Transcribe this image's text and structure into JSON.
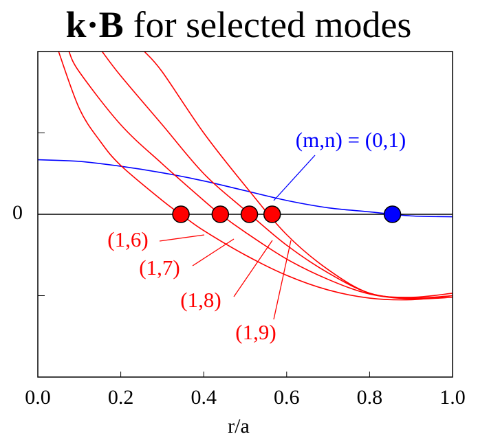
{
  "chart_data": {
    "type": "line",
    "title_symbol": "k·B",
    "title": "for selected modes",
    "xlabel": "r/a",
    "xlim": [
      0,
      1
    ],
    "ylim": [
      -2,
      2
    ],
    "xticks": [
      {
        "value": 0,
        "label": "0.0"
      },
      0.2,
      0.4,
      0.6,
      0.8,
      {
        "value": 1,
        "label": "1.0"
      }
    ],
    "yticks": [
      0
    ],
    "y_minor_ticks": [
      -2,
      -1,
      1,
      2
    ],
    "zero_line": true,
    "series": [
      {
        "name": "(m,n) = (0,1)",
        "color": "#0000ff",
        "x": [
          0,
          0.1,
          0.2,
          0.3,
          0.4,
          0.5,
          0.6,
          0.7,
          0.8,
          0.9,
          1.0
        ],
        "values": [
          0.67,
          0.65,
          0.59,
          0.51,
          0.41,
          0.29,
          0.17,
          0.08,
          0.03,
          -0.02,
          -0.03
        ]
      },
      {
        "name": "(1,6)",
        "color": "#ff0000",
        "x": [
          0.05,
          0.1,
          0.15,
          0.2,
          0.3,
          0.35,
          0.4,
          0.5,
          0.6,
          0.7,
          0.8,
          0.9,
          1.0
        ],
        "values": [
          2.0,
          1.3,
          0.9,
          0.6,
          0.17,
          -0.02,
          -0.2,
          -0.5,
          -0.75,
          -0.93,
          -1.03,
          -1.05,
          -1.0
        ]
      },
      {
        "name": "(1,7)",
        "color": "#ff0000",
        "x": [
          0.075,
          0.1,
          0.2,
          0.3,
          0.4,
          0.44,
          0.5,
          0.6,
          0.7,
          0.8,
          0.9,
          1.0
        ],
        "values": [
          2.0,
          1.75,
          1.1,
          0.62,
          0.17,
          0,
          -0.22,
          -0.55,
          -0.8,
          -0.98,
          -1.04,
          -1.02
        ]
      },
      {
        "name": "(1,8)",
        "color": "#ff0000",
        "x": [
          0.155,
          0.2,
          0.3,
          0.4,
          0.5,
          0.6,
          0.7,
          0.8,
          0.9,
          1.0
        ],
        "values": [
          2.0,
          1.7,
          1.1,
          0.5,
          0.05,
          -0.38,
          -0.72,
          -0.97,
          -1.03,
          -1.0
        ]
      },
      {
        "name": "(1,9)",
        "color": "#ff0000",
        "x": [
          0.257,
          0.3,
          0.4,
          0.5,
          0.6,
          0.7,
          0.8,
          0.9,
          1.0
        ],
        "values": [
          2.0,
          1.75,
          1.0,
          0.35,
          -0.25,
          -0.68,
          -0.97,
          -1.02,
          -0.97
        ]
      }
    ],
    "markers": [
      {
        "color": "#ff0000",
        "x": [
          0.345,
          0.44,
          0.51,
          0.565
        ],
        "values": [
          0,
          0,
          0,
          0
        ]
      },
      {
        "color": "#0000ff",
        "x": [
          0.855
        ],
        "values": [
          0
        ]
      }
    ]
  }
}
